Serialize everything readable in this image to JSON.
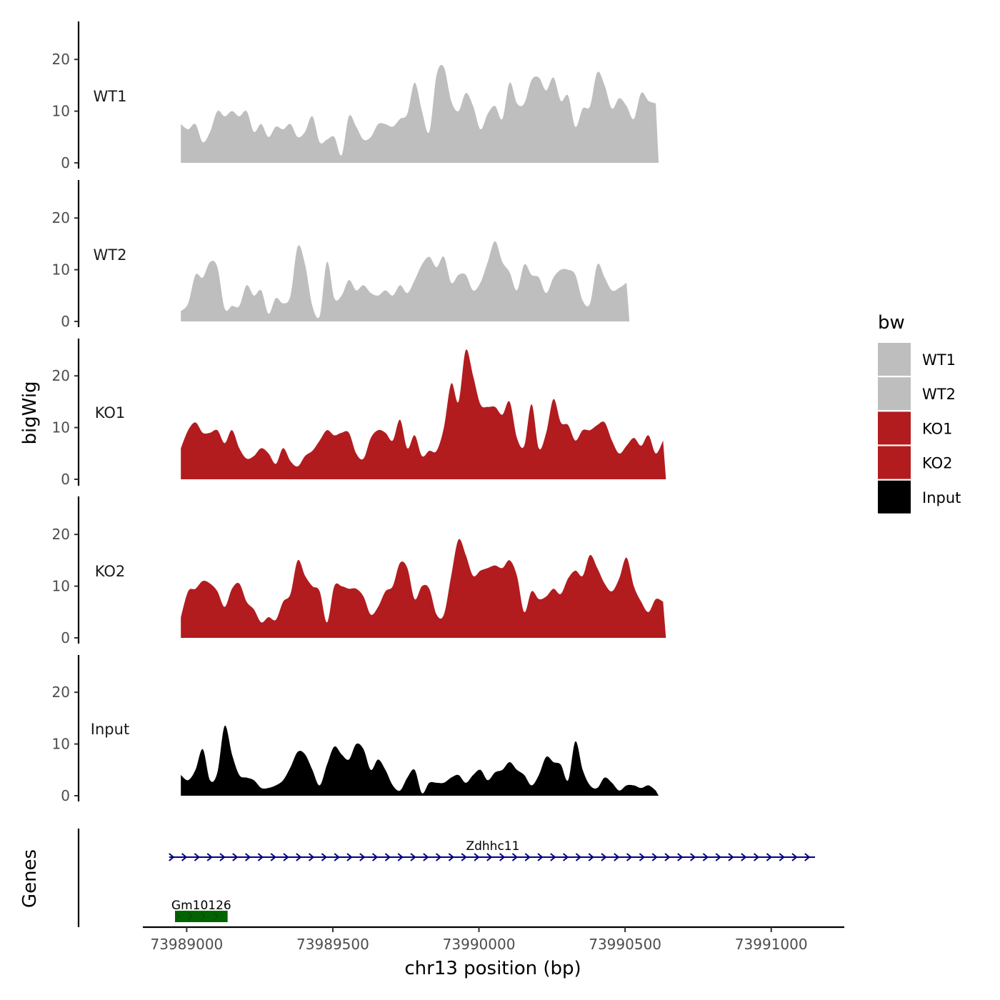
{
  "colors": {
    "WT1": "#bebebe",
    "WT2": "#bebebe",
    "KO1": "#b21c1f",
    "KO2": "#b21c1f",
    "Input": "#000000",
    "gene_arrow": "#000080",
    "gene_block": "#006400"
  },
  "chart_data": {
    "type": "area",
    "title": "",
    "ylabel": "bigWig",
    "xlabel": "chr13 position (bp)",
    "xlim": [
      73988850,
      73991250
    ],
    "ylim": [
      0,
      28
    ],
    "yticks": [
      0,
      10,
      20
    ],
    "xticks": [
      73989000,
      73989500,
      73990000,
      73990500,
      73991000
    ],
    "xtick_labels": [
      "73989000",
      "73989500",
      "73990000",
      "73990500",
      "73991000"
    ],
    "gene_panel_label": "Genes",
    "x_start": 73988980,
    "x_step": 25,
    "series": [
      {
        "name": "WT1",
        "values": [
          7.5,
          6.5,
          7.5,
          4.0,
          6.0,
          10.0,
          9.0,
          10.0,
          9.0,
          10.0,
          6.0,
          7.5,
          5.0,
          7.0,
          6.5,
          7.5,
          5.0,
          6.0,
          9.0,
          4.0,
          4.5,
          5.0,
          1.5,
          9.0,
          7.0,
          4.5,
          5.0,
          7.5,
          7.5,
          7.0,
          8.5,
          9.5,
          15.5,
          10.0,
          6.0,
          17.0,
          18.5,
          12.0,
          10.0,
          13.5,
          11.0,
          6.5,
          9.5,
          11.0,
          8.5,
          15.5,
          11.5,
          11.5,
          16.0,
          16.5,
          14.0,
          16.5,
          12.0,
          13.0,
          7.0,
          10.5,
          11.0,
          17.5,
          15.0,
          10.5,
          12.5,
          11.0,
          8.5,
          13.5,
          12.0,
          11.5
        ]
      },
      {
        "name": "WT2",
        "values": [
          2.0,
          3.5,
          9.0,
          8.5,
          11.5,
          10.5,
          2.5,
          3.0,
          3.0,
          7.0,
          5.0,
          6.0,
          1.5,
          4.5,
          3.5,
          5.0,
          14.5,
          11.0,
          3.0,
          1.0,
          11.5,
          4.5,
          5.0,
          8.0,
          6.0,
          7.0,
          5.5,
          5.0,
          6.0,
          5.0,
          7.0,
          5.5,
          8.0,
          11.0,
          12.5,
          10.5,
          12.5,
          7.5,
          9.0,
          9.0,
          6.0,
          7.5,
          11.5,
          15.5,
          11.5,
          9.5,
          6.0,
          11.0,
          9.0,
          8.5,
          5.5,
          8.5,
          10.0,
          10.0,
          9.0,
          4.0,
          3.5,
          11.0,
          8.5,
          6.0,
          6.5,
          7.5
        ]
      },
      {
        "name": "KO1",
        "values": [
          6.0,
          9.5,
          11.0,
          9.0,
          9.0,
          9.5,
          7.0,
          9.5,
          6.0,
          4.0,
          4.5,
          6.0,
          5.0,
          3.0,
          6.0,
          3.5,
          2.5,
          4.5,
          5.5,
          7.5,
          9.5,
          8.5,
          9.0,
          9.0,
          5.0,
          4.0,
          8.0,
          9.5,
          9.0,
          7.5,
          11.5,
          6.0,
          8.5,
          4.5,
          5.5,
          5.5,
          10.0,
          18.5,
          15.0,
          25.0,
          20.0,
          14.5,
          14.0,
          14.0,
          12.5,
          15.0,
          8.0,
          6.5,
          14.5,
          6.0,
          9.0,
          15.5,
          11.0,
          10.5,
          7.5,
          9.5,
          9.5,
          10.5,
          11.0,
          7.5,
          5.0,
          6.5,
          8.0,
          6.5,
          8.5,
          5.0,
          7.5
        ]
      },
      {
        "name": "KO2",
        "values": [
          4.0,
          9.0,
          9.5,
          11.0,
          10.5,
          9.0,
          6.0,
          9.5,
          10.5,
          7.0,
          5.5,
          3.0,
          4.0,
          3.5,
          7.0,
          8.5,
          15.0,
          12.0,
          10.0,
          9.0,
          3.0,
          10.0,
          10.0,
          9.5,
          9.5,
          8.0,
          4.5,
          6.0,
          9.0,
          10.0,
          14.5,
          13.5,
          7.5,
          10.0,
          9.5,
          4.5,
          4.5,
          12.0,
          19.0,
          16.0,
          12.0,
          13.0,
          13.5,
          14.0,
          13.5,
          15.0,
          12.0,
          5.0,
          9.0,
          7.5,
          8.0,
          9.5,
          8.5,
          11.5,
          13.0,
          12.0,
          16.0,
          13.5,
          10.5,
          9.0,
          11.5,
          15.5,
          10.0,
          7.0,
          5.0,
          7.5,
          7.0
        ]
      },
      {
        "name": "Input",
        "values": [
          4.0,
          3.0,
          5.0,
          9.0,
          3.0,
          4.5,
          13.5,
          8.0,
          4.0,
          3.5,
          3.0,
          1.5,
          1.5,
          2.0,
          3.0,
          5.5,
          8.5,
          8.0,
          5.0,
          2.0,
          6.0,
          9.5,
          8.0,
          7.0,
          10.0,
          9.0,
          5.0,
          7.0,
          5.0,
          2.0,
          1.0,
          3.5,
          5.0,
          0.5,
          2.5,
          2.5,
          2.5,
          3.5,
          4.0,
          2.5,
          4.0,
          5.0,
          3.0,
          4.5,
          5.0,
          6.5,
          5.0,
          4.0,
          2.0,
          4.0,
          7.5,
          6.5,
          6.0,
          3.0,
          10.5,
          5.0,
          2.0,
          1.5,
          3.5,
          2.5,
          1.0,
          2.0,
          2.0,
          1.5,
          2.0,
          1.0
        ]
      }
    ],
    "legend": {
      "title": "bw",
      "entries": [
        "WT1",
        "WT2",
        "KO1",
        "KO2",
        "Input"
      ]
    },
    "genes": [
      {
        "name": "Zdhhc11",
        "start": 73988940,
        "end": 73991150,
        "strand": "+",
        "type": "transcript"
      },
      {
        "name": "Gm10126",
        "start": 73988960,
        "end": 73989140,
        "strand": "+",
        "type": "exon"
      }
    ]
  }
}
